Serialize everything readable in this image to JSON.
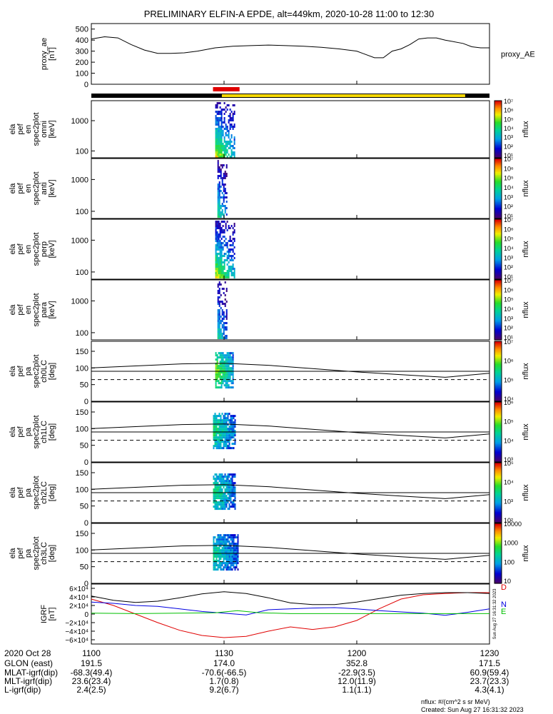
{
  "title": "PRELIMINARY ELFIN-A EPDE, alt=449km, 2020-10-28 11:00 to 12:30",
  "chart_data": [
    {
      "id": "proxy_ae",
      "type": "line",
      "ylabel": [
        "proxy_ae",
        "[nT]"
      ],
      "legend": "proxy_AE",
      "ylim": [
        0,
        550
      ],
      "yticks": [
        "500",
        "400",
        "300",
        "200",
        "100",
        "0"
      ],
      "xlim": [
        0,
        90
      ],
      "series": [
        {
          "x": [
            0,
            3,
            6,
            9,
            12,
            15,
            18,
            21,
            24,
            28,
            32,
            36,
            40,
            44,
            48,
            52,
            56,
            60,
            64,
            66,
            68,
            70,
            72,
            74,
            76,
            78,
            80,
            84,
            86,
            88,
            90
          ],
          "values": [
            410,
            430,
            420,
            360,
            310,
            280,
            280,
            285,
            300,
            330,
            345,
            350,
            355,
            350,
            345,
            335,
            320,
            300,
            240,
            240,
            300,
            320,
            360,
            410,
            420,
            420,
            400,
            370,
            340,
            330,
            330
          ]
        }
      ]
    },
    {
      "id": "ela_pef_en_spec2plot_omni",
      "type": "heatmap",
      "ylabel": [
        "ela",
        "pef",
        "en",
        "spec2plot",
        "omni",
        "[keV]"
      ],
      "ylog": true,
      "yticks": [
        "1000",
        "100"
      ],
      "colorbar": {
        "label": "nflux",
        "ticks": [
          "10⁷",
          "10⁶",
          "10⁵",
          "10⁴",
          "10³",
          "10²",
          "10¹"
        ]
      },
      "strip_x": [
        28,
        32.5
      ],
      "peak": 0.8
    },
    {
      "id": "ela_pef_en_spec2plot_anti",
      "type": "heatmap",
      "ylabel": [
        "ela",
        "pef",
        "en",
        "spec2plot",
        "anti",
        "[keV]"
      ],
      "ylog": true,
      "yticks": [
        "1000",
        "100"
      ],
      "colorbar": {
        "label": "nflux",
        "ticks": [
          "10⁷",
          "10⁶",
          "10⁵",
          "10⁴",
          "10³",
          "10²",
          "10¹"
        ]
      },
      "strip_x": [
        28.5,
        30.5
      ],
      "peak": 0.55
    },
    {
      "id": "ela_pef_en_spec2plot_perp",
      "type": "heatmap",
      "ylabel": [
        "ela",
        "pef",
        "en",
        "spec2plot",
        "perp",
        "[keV]"
      ],
      "ylog": true,
      "yticks": [
        "1000",
        "100"
      ],
      "colorbar": {
        "label": "nflux",
        "ticks": [
          "10⁷",
          "10⁶",
          "10⁵",
          "10⁴",
          "10³",
          "10²",
          "10¹"
        ]
      },
      "strip_x": [
        28,
        32.5
      ],
      "peak": 0.8
    },
    {
      "id": "ela_pef_en_spec2plot_para",
      "type": "heatmap",
      "ylabel": [
        "ela",
        "pef",
        "en",
        "spec2plot",
        "para",
        "[keV]"
      ],
      "ylog": true,
      "yticks": [
        "1000",
        "100"
      ],
      "colorbar": {
        "label": "nflux",
        "ticks": [
          "10⁷",
          "10⁶",
          "10⁵",
          "10⁴",
          "10³",
          "10²",
          "10¹"
        ]
      },
      "strip_x": [
        28.5,
        30.5
      ],
      "peak": 0.5
    },
    {
      "id": "ela_pef_pa_spec2plot_ch0LC",
      "type": "heatmap",
      "ylabel": [
        "ela",
        "pef",
        "pa",
        "spec2plot",
        "ch0LC",
        "[deg]"
      ],
      "ylim": [
        0,
        180
      ],
      "yticks": [
        "150",
        "100",
        "50",
        "0"
      ],
      "colorbar": {
        "label": "nflux",
        "ticks": [
          "10⁷",
          "10⁶",
          "10⁵",
          "10⁴"
        ]
      },
      "strip_x": [
        28,
        32
      ],
      "peak": 0.7,
      "lines": {
        "x": [
          0,
          10,
          20,
          30,
          40,
          50,
          60,
          70,
          80,
          90
        ],
        "solid": [
          100,
          106,
          112,
          114,
          108,
          98,
          88,
          80,
          72,
          84
        ],
        "const": 90,
        "dashed": 65
      }
    },
    {
      "id": "ela_pef_pa_spec2plot_ch1LC",
      "type": "heatmap",
      "ylabel": [
        "ela",
        "pef",
        "pa",
        "spec2plot",
        "ch1LC",
        "[deg]"
      ],
      "ylim": [
        0,
        180
      ],
      "yticks": [
        "150",
        "100",
        "50",
        "0"
      ],
      "colorbar": {
        "label": "nflux",
        "ticks": [
          "10⁶",
          "10⁵",
          "10⁴",
          "10³"
        ]
      },
      "strip_x": [
        27.5,
        32.5
      ],
      "peak": 0.55,
      "lines": {
        "x": [
          0,
          10,
          20,
          30,
          40,
          50,
          60,
          70,
          80,
          90
        ],
        "solid": [
          100,
          106,
          112,
          114,
          108,
          98,
          88,
          80,
          72,
          84
        ],
        "const": 90,
        "dashed": 65
      }
    },
    {
      "id": "ela_pef_pa_spec2plot_ch2LC",
      "type": "heatmap",
      "ylabel": [
        "ela",
        "pef",
        "pa",
        "spec2plot",
        "ch2LC",
        "[deg]"
      ],
      "ylim": [
        0,
        180
      ],
      "yticks": [
        "150",
        "100",
        "50",
        "0"
      ],
      "colorbar": {
        "label": "nflux",
        "ticks": [
          "10⁵",
          "10⁴",
          "10³",
          "10²"
        ]
      },
      "strip_x": [
        27.5,
        32.5
      ],
      "peak": 0.55,
      "lines": {
        "x": [
          0,
          10,
          20,
          30,
          40,
          50,
          60,
          70,
          80,
          90
        ],
        "solid": [
          100,
          106,
          112,
          114,
          108,
          98,
          88,
          80,
          72,
          84
        ],
        "const": 90,
        "dashed": 65
      }
    },
    {
      "id": "ela_pef_pa_spec2plot_ch3LC",
      "type": "heatmap",
      "ylabel": [
        "ela",
        "pef",
        "pa",
        "spec2plot",
        "ch3LC",
        "[deg]"
      ],
      "ylim": [
        0,
        180
      ],
      "yticks": [
        "150",
        "100",
        "50",
        "0"
      ],
      "colorbar": {
        "label": "nflux",
        "ticks": [
          "10000",
          "1000",
          "100",
          "10"
        ]
      },
      "strip_x": [
        27.5,
        33
      ],
      "peak": 0.5,
      "lines": {
        "x": [
          0,
          10,
          20,
          30,
          40,
          50,
          60,
          70,
          80,
          90
        ],
        "solid": [
          100,
          106,
          112,
          114,
          108,
          98,
          88,
          80,
          72,
          84
        ],
        "const": 90,
        "dashed": 65
      }
    },
    {
      "id": "igrf",
      "type": "line",
      "ylabel": [
        "IGRF",
        "[nT]"
      ],
      "ylim": [
        -70000,
        70000
      ],
      "yticks": [
        "6×10⁴",
        "4×10⁴",
        "2×10⁴",
        "0",
        "−2×10⁴",
        "−4×10⁴",
        "−6×10⁴"
      ],
      "legend": [
        "D",
        "N",
        "E"
      ],
      "series": [
        {
          "name": "D",
          "color": "#e00000",
          "x": [
            0,
            5,
            10,
            15,
            20,
            25,
            30,
            35,
            40,
            45,
            50,
            55,
            60,
            65,
            70,
            75,
            80,
            85,
            90
          ],
          "values": [
            35000,
            20000,
            0,
            -20000,
            -38000,
            -50000,
            -55000,
            -52000,
            -40000,
            -30000,
            -36000,
            -30000,
            -15000,
            12000,
            35000,
            45000,
            48000,
            50000,
            50000
          ]
        },
        {
          "name": "N",
          "color": "#0000e0",
          "x": [
            0,
            5,
            10,
            15,
            20,
            25,
            30,
            35,
            40,
            45,
            50,
            55,
            60,
            65,
            70,
            75,
            80,
            85,
            90
          ],
          "values": [
            28000,
            25000,
            20000,
            18000,
            12000,
            6000,
            2000,
            -2000,
            10000,
            12000,
            14000,
            15000,
            12000,
            8000,
            5000,
            2000,
            -3000,
            4000,
            12000
          ]
        },
        {
          "name": "E",
          "color": "#00c000",
          "x": [
            0,
            10,
            20,
            28,
            33,
            38,
            45,
            60,
            75,
            90
          ],
          "values": [
            2000,
            1000,
            2000,
            3000,
            8000,
            3000,
            1000,
            1000,
            1000,
            1000
          ]
        },
        {
          "name": "",
          "color": "#000000",
          "x": [
            0,
            5,
            10,
            15,
            20,
            25,
            30,
            35,
            40,
            45,
            50,
            55,
            60,
            65,
            70,
            75,
            80,
            85,
            90
          ],
          "values": [
            42000,
            32000,
            27000,
            30000,
            38000,
            47000,
            52000,
            48000,
            38000,
            26000,
            22000,
            22000,
            28000,
            36000,
            44000,
            48000,
            50000,
            50000,
            48000
          ]
        }
      ]
    }
  ],
  "mode_bar": {
    "colors": {
      "black": "#000000",
      "yellow": "#f5d800",
      "red": "#e00000"
    }
  },
  "xaxis": {
    "ticks": [
      "1100",
      "1130",
      "1200",
      "1230"
    ],
    "tick_x": [
      0,
      30,
      60,
      90
    ],
    "rows": [
      {
        "label": "2020 Oct 28",
        "values": [
          "",
          "",
          "",
          ""
        ]
      },
      {
        "label": "GLON (east)",
        "values": [
          "191.5",
          "174.0",
          "352.8",
          "171.5"
        ]
      },
      {
        "label": "MLAT-igrf(dip)",
        "values": [
          "-68.3(49.4)",
          "-70.6(-66.5)",
          "-22.9(3.5)",
          "60.9(59.4)"
        ]
      },
      {
        "label": "MLT-igrf(dip)",
        "values": [
          "23.6(23.4)",
          "1.7(0.8)",
          "12.0(11.9)",
          "23.7(23.3)"
        ]
      },
      {
        "label": "L-igrf(dip)",
        "values": [
          "2.4(2.5)",
          "9.2(6.7)",
          "1.1(1.1)",
          "4.3(4.1)"
        ]
      }
    ]
  },
  "footer": {
    "units": "nflux: #/(cm^2 s sr MeV)",
    "created": "Created: Sun Aug 27 16:31:32 2023",
    "stamp": "Sun Aug 27 16:31:32 2023"
  }
}
